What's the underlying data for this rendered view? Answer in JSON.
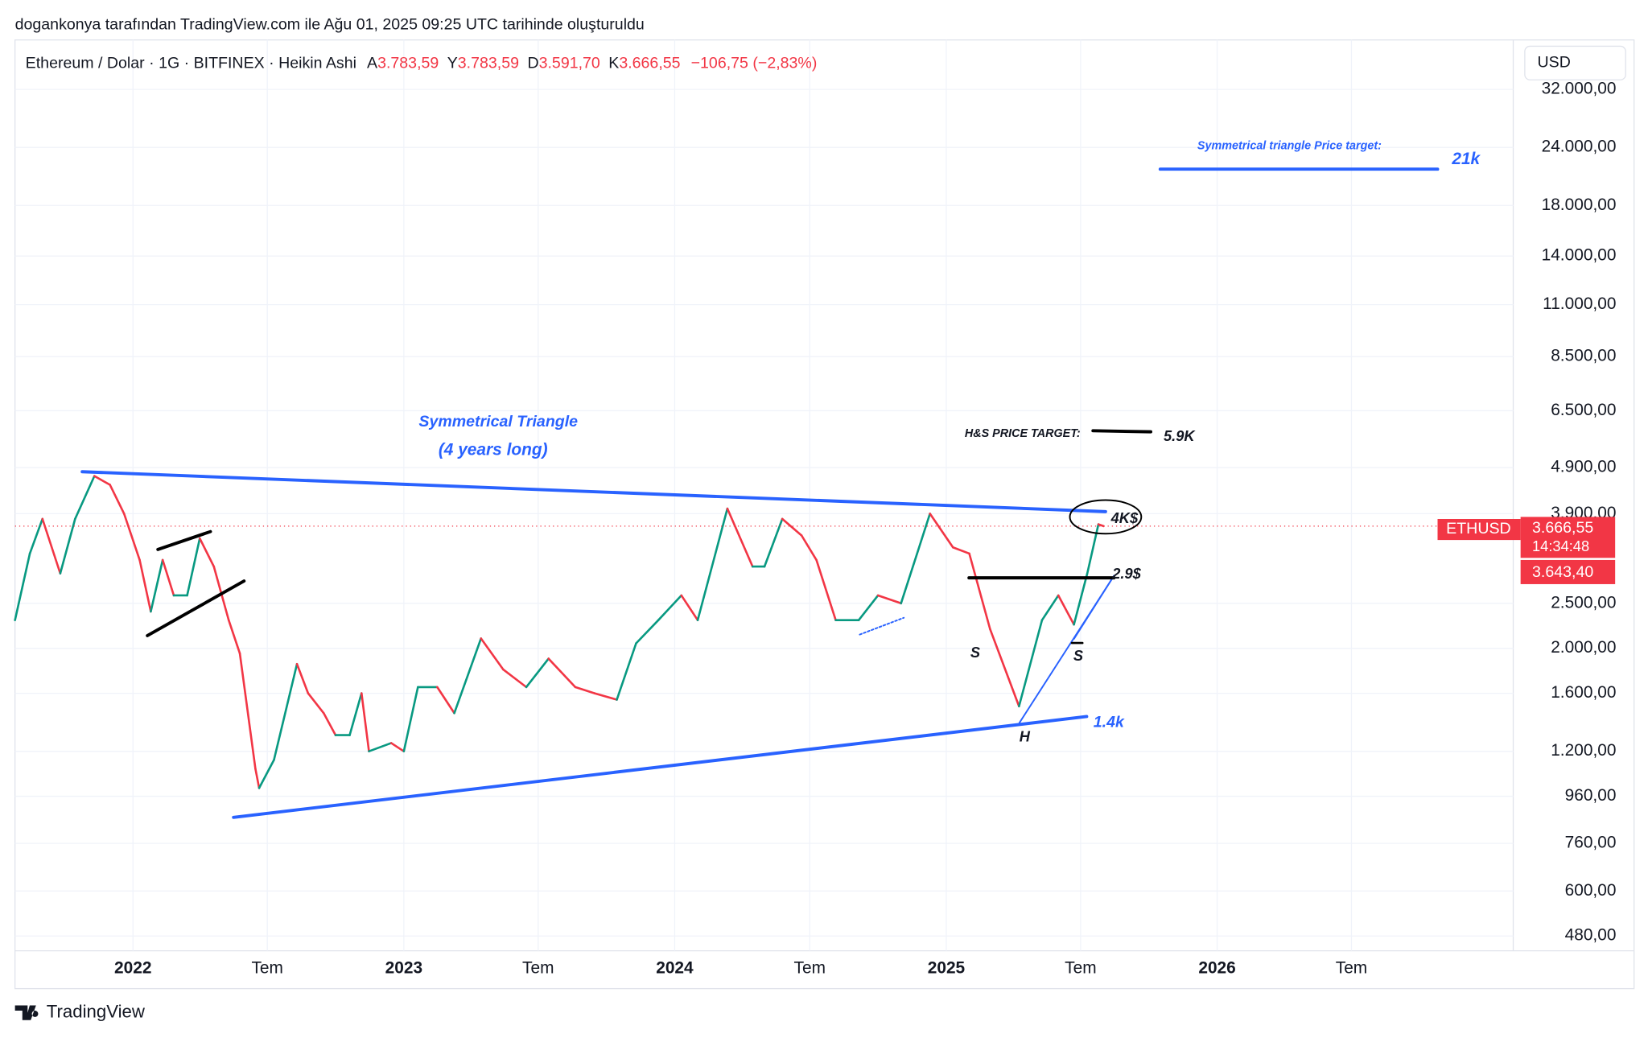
{
  "header": {
    "created": "dogankonya tarafından TradingView.com ile Ağu 01, 2025 09:25 UTC tarihinde oluşturuldu",
    "symbol": "Ethereum / Dolar · 1G · BITFINEX · Heikin Ashi",
    "ohlc": [
      [
        "A",
        "3.783,59"
      ],
      [
        "Y",
        "3.783,59"
      ],
      [
        "D",
        "3.591,70"
      ],
      [
        "K",
        "3.666,55"
      ]
    ],
    "change": "−106,75 (−2,83%)",
    "currency": "USD"
  },
  "chart_data": {
    "type": "line",
    "log_scale": true,
    "grid": true,
    "x": [
      "2021-07-26",
      "2021-08-15",
      "2021-09-01",
      "2021-09-25",
      "2021-10-15",
      "2021-11-10",
      "2021-12-01",
      "2021-12-20",
      "2022-01-10",
      "2022-01-25",
      "2022-02-10",
      "2022-02-25",
      "2022-03-15",
      "2022-04-01",
      "2022-04-20",
      "2022-05-10",
      "2022-05-25",
      "2022-06-15",
      "2022-06-20",
      "2022-07-10",
      "2022-08-10",
      "2022-08-25",
      "2022-09-15",
      "2022-10-01",
      "2022-10-20",
      "2022-11-05",
      "2022-11-15",
      "2022-12-15",
      "2023-01-01",
      "2023-01-20",
      "2023-02-15",
      "2023-03-10",
      "2023-04-15",
      "2023-05-15",
      "2023-06-15",
      "2023-07-15",
      "2023-08-20",
      "2023-09-15",
      "2023-10-15",
      "2023-11-10",
      "2023-12-10",
      "2024-01-10",
      "2024-02-01",
      "2024-03-12",
      "2024-04-15",
      "2024-05-01",
      "2024-05-25",
      "2024-06-20",
      "2024-07-10",
      "2024-08-05",
      "2024-09-05",
      "2024-10-01",
      "2024-11-01",
      "2024-12-10",
      "2025-01-10",
      "2025-02-01",
      "2025-03-01",
      "2025-04-09",
      "2025-05-10",
      "2025-06-01",
      "2025-06-22",
      "2025-07-10",
      "2025-07-25",
      "2025-08-01"
    ],
    "series": [
      {
        "name": "ETHUSD",
        "up_color": "#089981",
        "down_color": "#f23645",
        "values": [
          2300,
          3200,
          3800,
          2900,
          3800,
          4700,
          4500,
          3900,
          3100,
          2400,
          3100,
          2600,
          2600,
          3450,
          3000,
          2300,
          1950,
          1100,
          1000,
          1150,
          1850,
          1600,
          1450,
          1300,
          1300,
          1600,
          1200,
          1250,
          1200,
          1650,
          1650,
          1450,
          2100,
          1800,
          1650,
          1900,
          1650,
          1600,
          1550,
          2050,
          2300,
          2600,
          2300,
          4000,
          3000,
          3000,
          3800,
          3500,
          3100,
          2300,
          2300,
          2600,
          2500,
          3900,
          3300,
          3200,
          2200,
          1500,
          2300,
          2600,
          2250,
          2900,
          3700,
          3666.55
        ]
      }
    ],
    "xlim": [
      "2021-07-26",
      "2027-02-04"
    ],
    "xticks": [
      {
        "value": "2022-01-01",
        "label": "2022"
      },
      {
        "value": "2022-07-01",
        "label": "Tem"
      },
      {
        "value": "2023-01-01",
        "label": "2023"
      },
      {
        "value": "2023-07-01",
        "label": "Tem"
      },
      {
        "value": "2024-01-01",
        "label": "2024"
      },
      {
        "value": "2024-07-01",
        "label": "Tem"
      },
      {
        "value": "2025-01-01",
        "label": "2025"
      },
      {
        "value": "2025-07-01",
        "label": "Tem"
      },
      {
        "value": "2026-01-01",
        "label": "2026"
      },
      {
        "value": "2026-07-01",
        "label": "Tem"
      }
    ],
    "ylim": [
      446,
      40900
    ],
    "yticks": [
      {
        "value": 480,
        "label": "480,00"
      },
      {
        "value": 600,
        "label": "600,00"
      },
      {
        "value": 760,
        "label": "760,00"
      },
      {
        "value": 960,
        "label": "960,00"
      },
      {
        "value": 1200,
        "label": "1.200,00"
      },
      {
        "value": 1600,
        "label": "1.600,00"
      },
      {
        "value": 2000,
        "label": "2.000,00"
      },
      {
        "value": 2500,
        "label": "2.500,00"
      },
      {
        "value": 3900,
        "label": "3.900,00"
      },
      {
        "value": 4900,
        "label": "4.900,00"
      },
      {
        "value": 6500,
        "label": "6.500,00"
      },
      {
        "value": 8500,
        "label": "8.500,00"
      },
      {
        "value": 11000,
        "label": "11.000,00"
      },
      {
        "value": 14000,
        "label": "14.000,00"
      },
      {
        "value": 18000,
        "label": "18.000,00"
      },
      {
        "value": 24000,
        "label": "24.000,00"
      },
      {
        "value": 32000,
        "label": "32.000,00"
      }
    ]
  },
  "price_labels": {
    "symbol": "ETHUSD",
    "last": "3.666,55",
    "countdown": "14:34:48",
    "other": "3.643,40"
  },
  "annotations": {
    "triangle": "Symmetrical Triangle",
    "duration": "(4 years long)",
    "target_title": "Symmetrical triangle Price target:",
    "target": "21k",
    "hs_title": "H&S PRICE TARGET:",
    "hs_target": "5.9K",
    "resistance": "4K$",
    "neckline": "2.9$",
    "left_shoulder": "S",
    "right_shoulder": "S",
    "head": "H",
    "support": "1.4k"
  },
  "footer": "TradingView"
}
